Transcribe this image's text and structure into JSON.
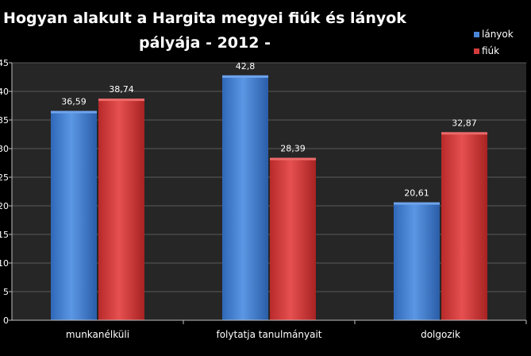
{
  "chart_data": {
    "type": "bar",
    "title_line1": "Hogyan alakult a Hargita megyei fiúk és lányok",
    "title_line2": "pályája  - 2012 -",
    "categories": [
      "munkanélküli",
      "folytatja tanulmányait",
      "dolgozik"
    ],
    "series": [
      {
        "name": "lányok",
        "values": [
          36.59,
          42.8,
          20.61
        ],
        "value_labels": [
          "36,59",
          "42,8",
          "20,61"
        ],
        "color": "#4a86d8"
      },
      {
        "name": "fiúk",
        "values": [
          38.74,
          28.39,
          32.87
        ],
        "value_labels": [
          "38,74",
          "28,39",
          "32,87"
        ],
        "color": "#d43c3c"
      }
    ],
    "ylim": [
      0,
      45
    ],
    "yticks": [
      0,
      5,
      10,
      15,
      20,
      25,
      30,
      35,
      40,
      45
    ],
    "grid": true,
    "legend_position": "top-right",
    "colors": {
      "background": "#000000",
      "plot_area": "#262626",
      "text": "#ffffff",
      "grid": "#5a5a5a"
    }
  }
}
